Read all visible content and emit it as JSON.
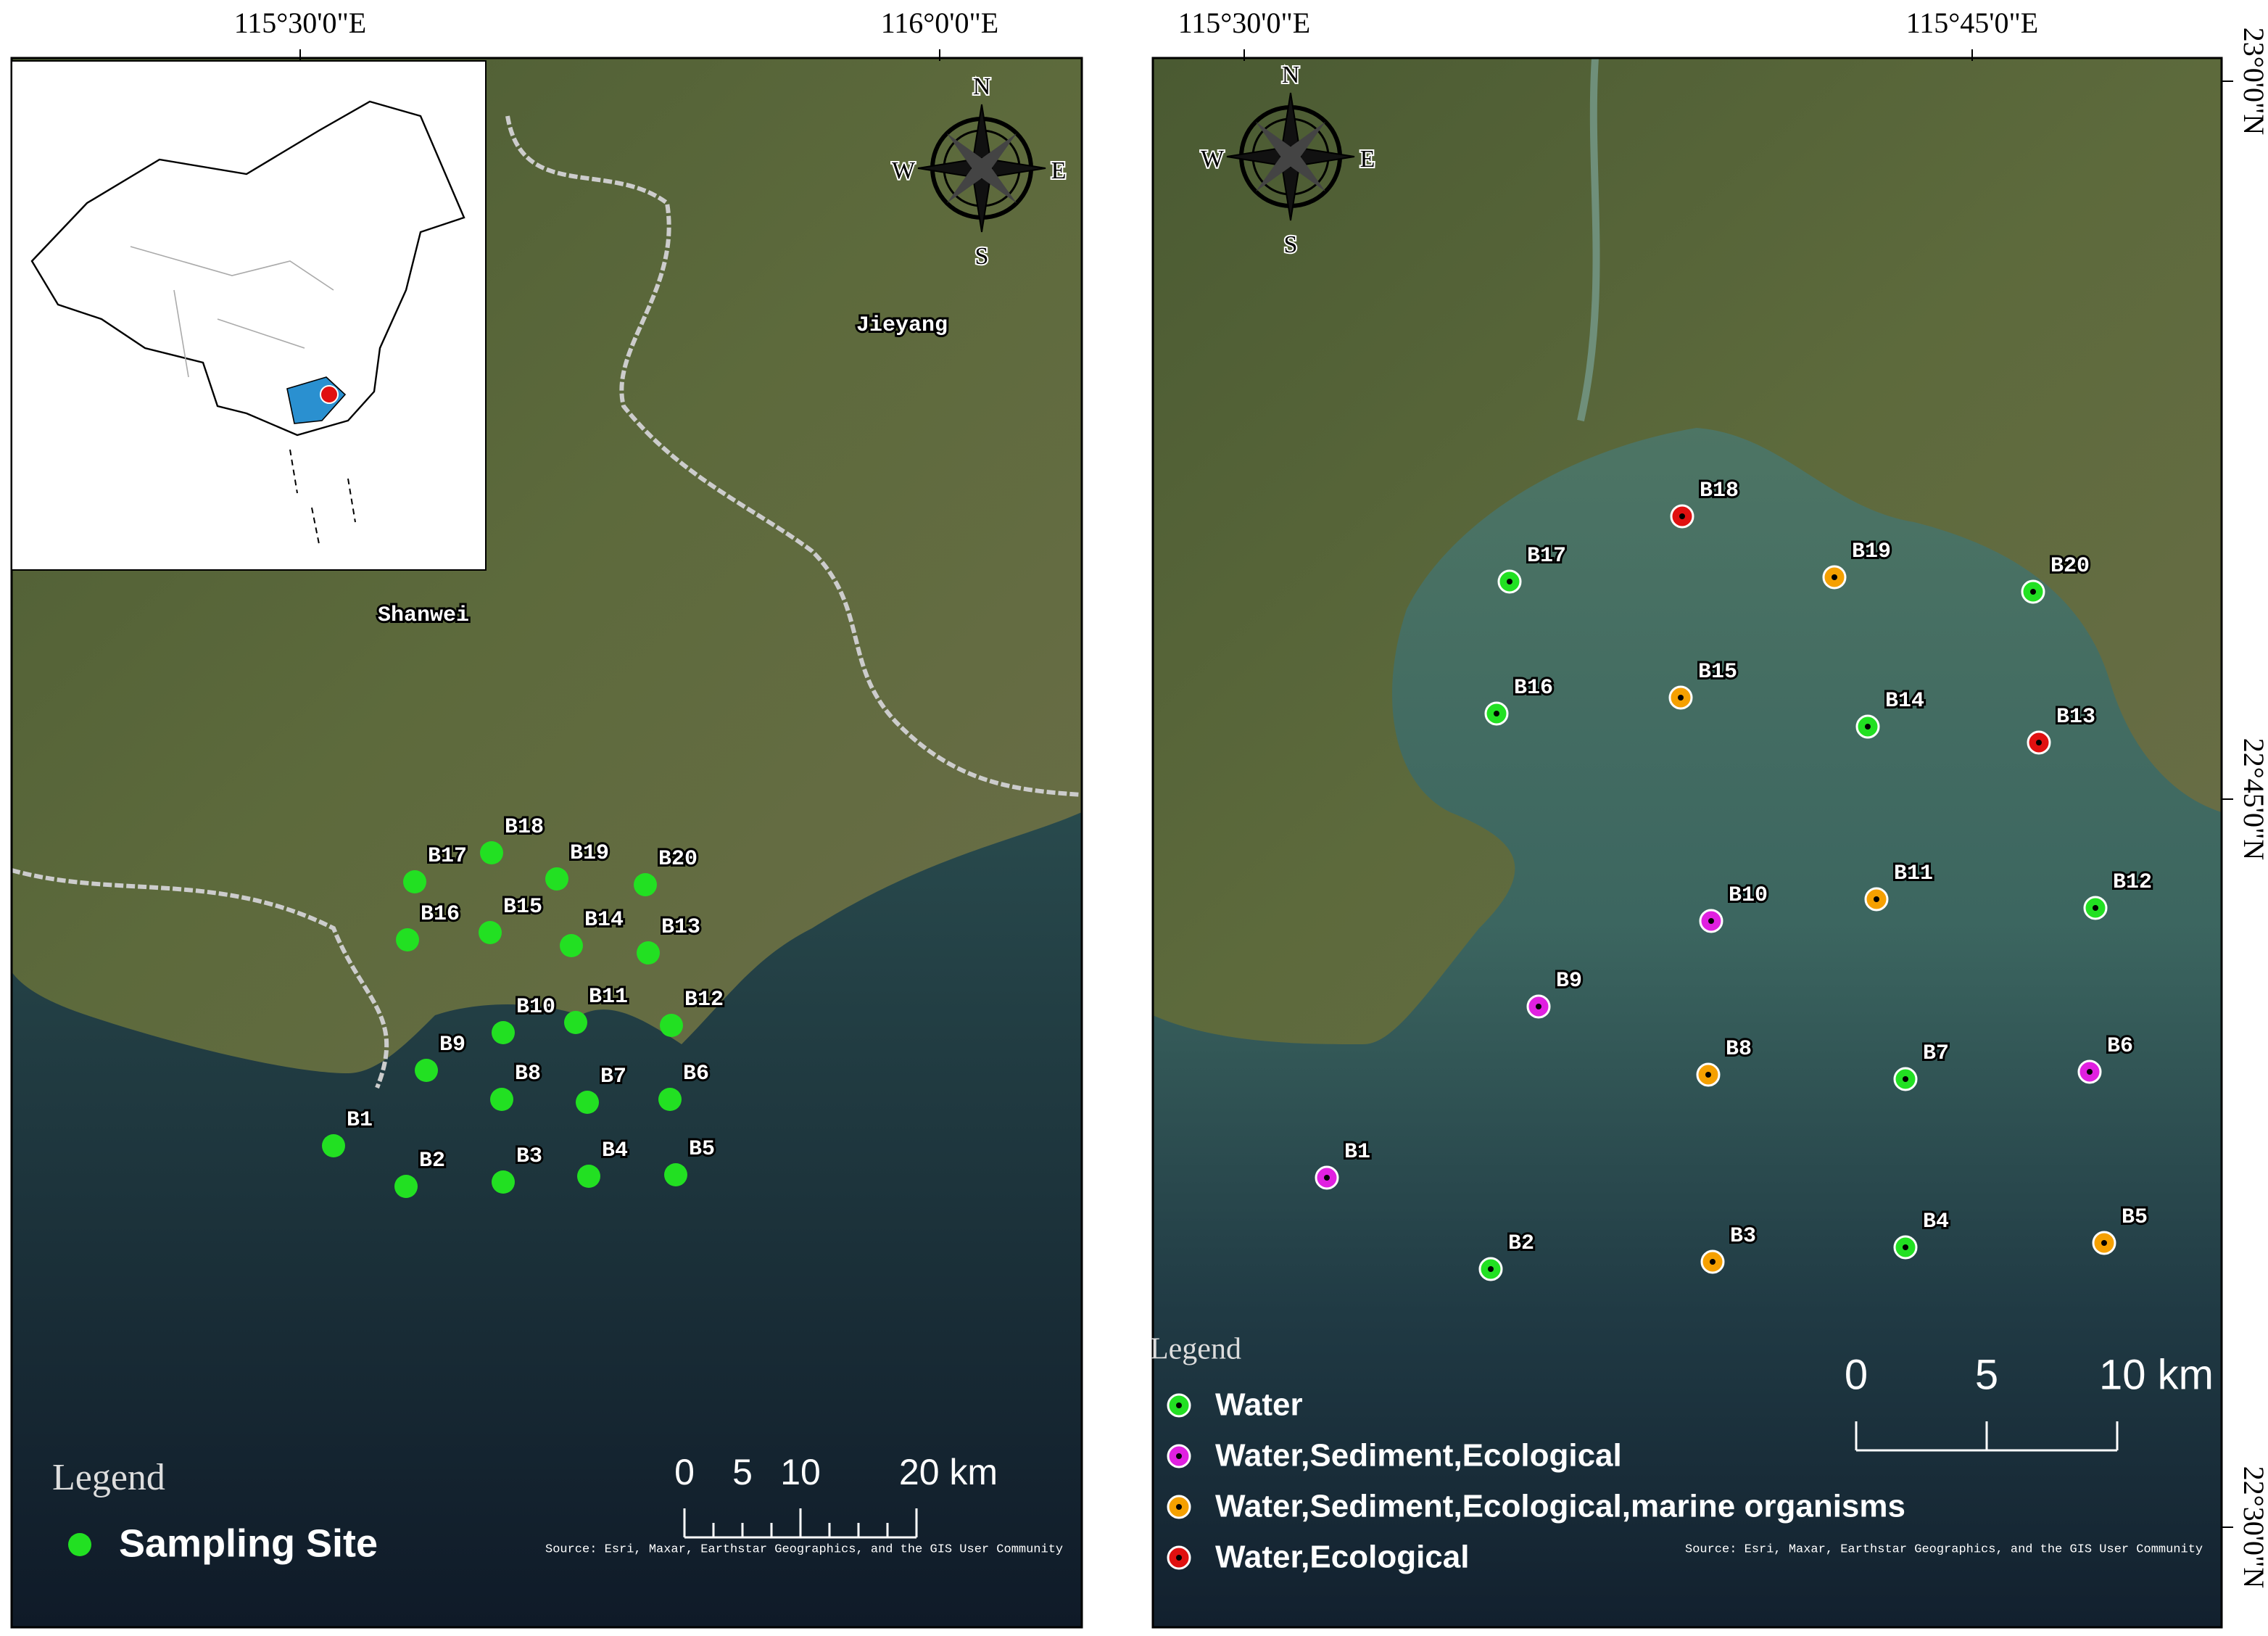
{
  "left_map": {
    "lon_labels": [
      "115°30'0\"E",
      "116°0'0\"E"
    ],
    "compass": [
      "N",
      "E",
      "S",
      "W"
    ],
    "places": [
      "Jieyang",
      "Shanwei"
    ],
    "sites": [
      "B1",
      "B2",
      "B3",
      "B4",
      "B5",
      "B6",
      "B7",
      "B8",
      "B9",
      "B10",
      "B11",
      "B12",
      "B13",
      "B14",
      "B15",
      "B16",
      "B17",
      "B18",
      "B19",
      "B20"
    ],
    "site_color": "#22e022",
    "legend": {
      "title": "Legend",
      "items": [
        "Sampling Site"
      ]
    },
    "scale": [
      "0",
      "5",
      "10",
      "20 km"
    ],
    "source": "Source: Esri, Maxar, Earthstar Geographics, and the GIS User Community"
  },
  "right_map": {
    "lon_labels": [
      "115°30'0\"E",
      "115°45'0\"E"
    ],
    "lat_labels": [
      "23°0'0\"N",
      "22°45'0\"N",
      "22°30'0\"N"
    ],
    "compass": [
      "N",
      "E",
      "S",
      "W"
    ],
    "legend": {
      "title": "Legend",
      "items": [
        {
          "label": "Water",
          "color": "#22e022"
        },
        {
          "label": "Water,Sediment,Ecological",
          "color": "#e020e0"
        },
        {
          "label": "Water,Sediment,Ecological,marine organisms",
          "color": "#f5a000"
        },
        {
          "label": "Water,Ecological",
          "color": "#e01010"
        }
      ]
    },
    "sites": [
      {
        "label": "B1",
        "color": "#e020e0"
      },
      {
        "label": "B2",
        "color": "#22e022"
      },
      {
        "label": "B3",
        "color": "#f5a000"
      },
      {
        "label": "B4",
        "color": "#22e022"
      },
      {
        "label": "B5",
        "color": "#f5a000"
      },
      {
        "label": "B6",
        "color": "#e020e0"
      },
      {
        "label": "B7",
        "color": "#22e022"
      },
      {
        "label": "B8",
        "color": "#f5a000"
      },
      {
        "label": "B9",
        "color": "#e020e0"
      },
      {
        "label": "B10",
        "color": "#e020e0"
      },
      {
        "label": "B11",
        "color": "#f5a000"
      },
      {
        "label": "B12",
        "color": "#22e022"
      },
      {
        "label": "B13",
        "color": "#e01010"
      },
      {
        "label": "B14",
        "color": "#22e022"
      },
      {
        "label": "B15",
        "color": "#f5a000"
      },
      {
        "label": "B16",
        "color": "#22e022"
      },
      {
        "label": "B17",
        "color": "#22e022"
      },
      {
        "label": "B18",
        "color": "#e01010"
      },
      {
        "label": "B19",
        "color": "#f5a000"
      },
      {
        "label": "B20",
        "color": "#22e022"
      }
    ],
    "scale": [
      "0",
      "5",
      "10 km"
    ],
    "source": "Source: Esri, Maxar, Earthstar Geographics, and the GIS User Community"
  }
}
